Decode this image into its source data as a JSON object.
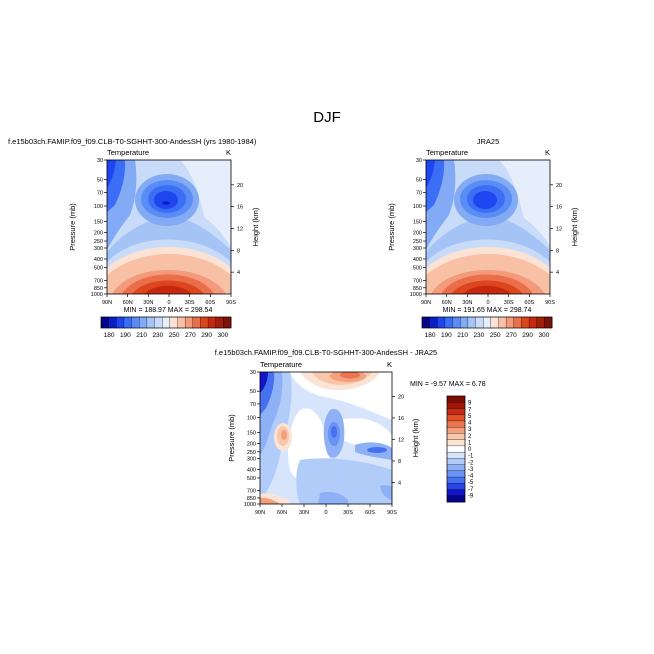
{
  "page": {
    "title": "DJF"
  },
  "colors": {
    "scale_abs": [
      "#03048c",
      "#0a1ec8",
      "#1e46f0",
      "#3c6ef5",
      "#5a8cf5",
      "#82aaf5",
      "#a5c3f5",
      "#c8dcfa",
      "#e6eefc",
      "#fbe2d5",
      "#f8c0a5",
      "#f29a7a",
      "#ea6e4a",
      "#dc461e",
      "#c8280f",
      "#a01e0a",
      "#7a1208"
    ],
    "scale_diff": [
      "#05068c",
      "#1414c8",
      "#2846e6",
      "#4670f0",
      "#6a92f5",
      "#8eb0f7",
      "#b2ccfa",
      "#d6e4fc",
      "#ffffff",
      "#fbe4d6",
      "#f8c6ab",
      "#f4a07c",
      "#ec7650",
      "#e04e2a",
      "#c82a14",
      "#a01608",
      "#7a0c04"
    ]
  },
  "chart_data": [
    {
      "type": "heatmap",
      "title": "f.e15b03ch.FAMIP.f09_f09.CLB-T0-SGHHT-300-AndesSH (yrs 1980-1984)",
      "subtitle": "Temperature",
      "units": "K",
      "ylabel": "Pressure (mb)",
      "y2label": "Height (km)",
      "x_ticks": [
        "90N",
        "60N",
        "30N",
        "0",
        "30S",
        "60S",
        "90S"
      ],
      "y_ticks": [
        "30",
        "50",
        "70",
        "100",
        "150",
        "200",
        "250",
        "300",
        "400",
        "500",
        "700",
        "850",
        "1000"
      ],
      "y2_ticks": [
        "20",
        "16",
        "12",
        "8",
        "4"
      ],
      "stats": "MIN =  188.97   MAX =  298.54",
      "colorbar_labels": [
        "180",
        "190",
        "210",
        "230",
        "250",
        "270",
        "290",
        "300"
      ]
    },
    {
      "type": "heatmap",
      "title": "JRA25",
      "subtitle": "Temperature",
      "units": "K",
      "ylabel": "Pressure (mb)",
      "y2label": "Height (km)",
      "x_ticks": [
        "90N",
        "60N",
        "30N",
        "0",
        "30S",
        "60S",
        "90S"
      ],
      "y_ticks": [
        "30",
        "50",
        "70",
        "100",
        "150",
        "200",
        "250",
        "300",
        "400",
        "500",
        "700",
        "850",
        "1000"
      ],
      "y2_ticks": [
        "20",
        "16",
        "12",
        "8",
        "4"
      ],
      "stats": "MIN =  191.65   MAX =  298.74",
      "colorbar_labels": [
        "180",
        "190",
        "210",
        "230",
        "250",
        "270",
        "290",
        "300"
      ]
    },
    {
      "type": "heatmap",
      "title": "f.e15b03ch.FAMIP.f09_f09.CLB-T0-SGHHT-300-AndesSH - JRA25",
      "subtitle": "Temperature",
      "units": "K",
      "ylabel": "Pressure (mb)",
      "y2label": "Height (km)",
      "x_ticks": [
        "90N",
        "60N",
        "30N",
        "0",
        "30S",
        "60S",
        "90S"
      ],
      "y_ticks": [
        "30",
        "50",
        "70",
        "100",
        "150",
        "200",
        "250",
        "300",
        "400",
        "500",
        "700",
        "850",
        "1000"
      ],
      "y2_ticks": [
        "20",
        "16",
        "12",
        "8",
        "4"
      ],
      "stats": "MIN =   -9.57   MAX =    6.78",
      "colorbar_labels": [
        "9",
        "7",
        "5",
        "4",
        "3",
        "2",
        "1",
        "0",
        "-1",
        "-2",
        "-3",
        "-4",
        "-5",
        "-7",
        "-9"
      ]
    }
  ]
}
